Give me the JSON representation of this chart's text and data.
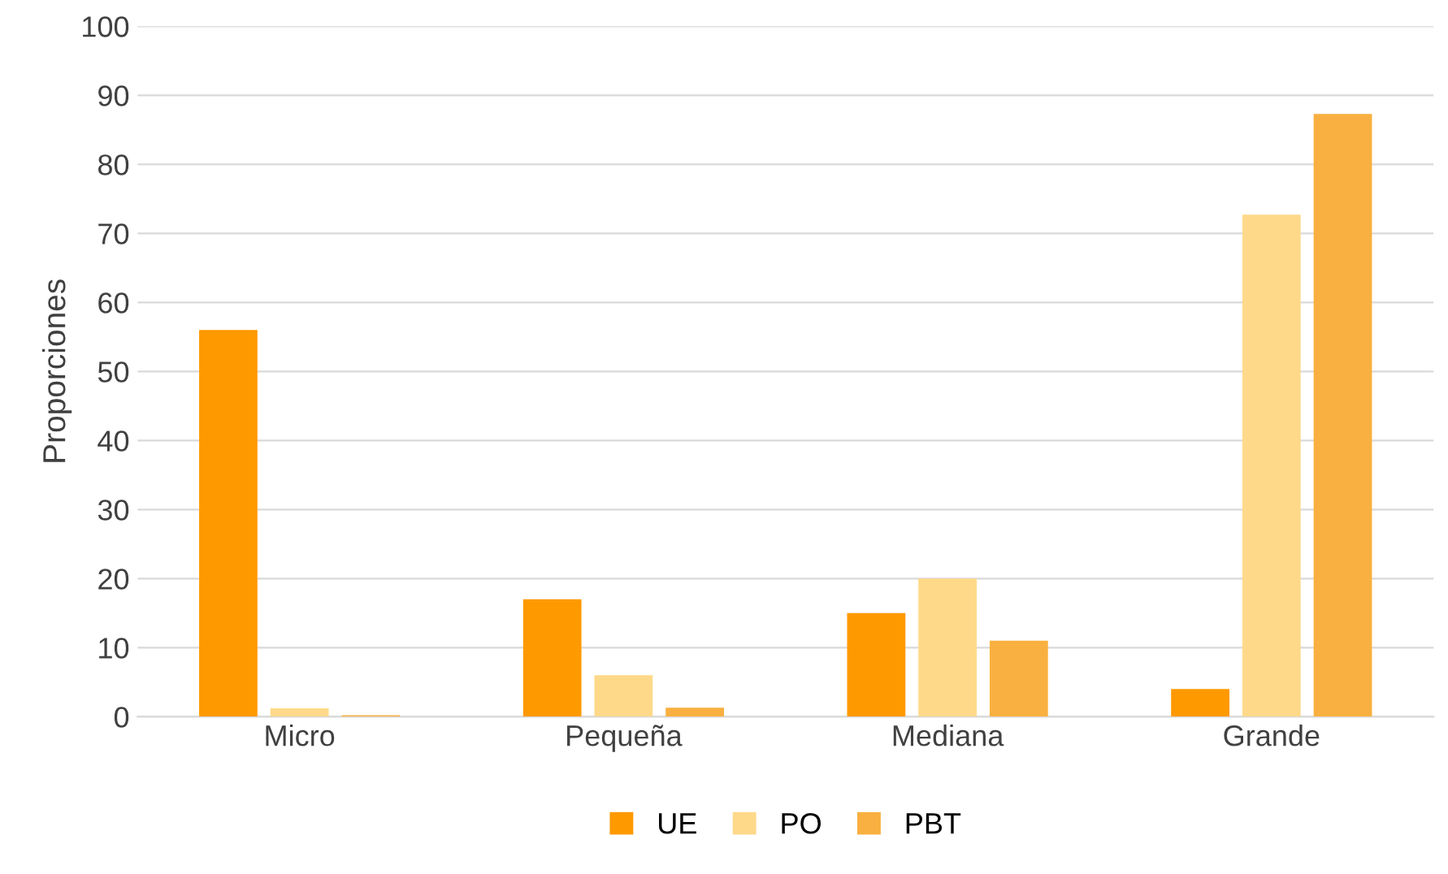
{
  "chart_data": {
    "type": "bar",
    "ylabel": "Proporciones",
    "categories": [
      "Micro",
      "Pequeña",
      "Mediana",
      "Grande"
    ],
    "series": [
      {
        "name": "UE",
        "color": "#ff9900",
        "values": [
          56,
          17,
          15,
          4
        ]
      },
      {
        "name": "PO",
        "color": "#ffd98a",
        "values": [
          1.2,
          6,
          20,
          72.7
        ]
      },
      {
        "name": "PBT",
        "color": "#f9b040",
        "values": [
          0.2,
          1.3,
          11,
          87.3
        ]
      }
    ],
    "ylim": [
      0,
      100
    ],
    "yticks": [
      0,
      10,
      20,
      30,
      40,
      50,
      60,
      70,
      80,
      90,
      100
    ],
    "grid": "y",
    "legend": "bottom"
  }
}
